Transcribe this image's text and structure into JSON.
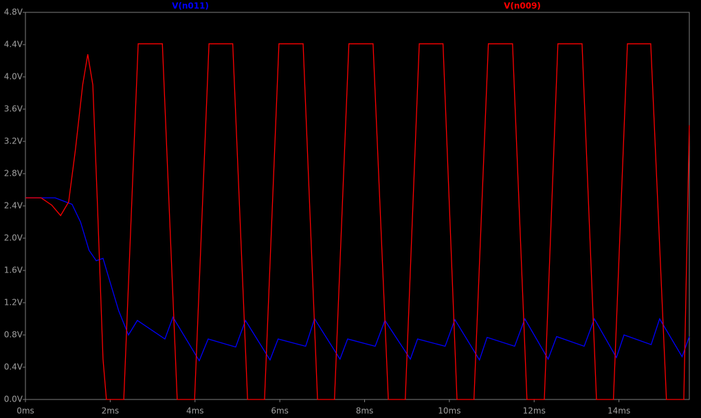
{
  "chart_data": {
    "type": "line",
    "xlim": [
      0,
      15.66
    ],
    "ylim": [
      0,
      4.8
    ],
    "xticks": [
      {
        "value": 0,
        "label": "0ms"
      },
      {
        "value": 2,
        "label": "2ms"
      },
      {
        "value": 4,
        "label": "4ms"
      },
      {
        "value": 6,
        "label": "6ms"
      },
      {
        "value": 8,
        "label": "8ms"
      },
      {
        "value": 10,
        "label": "10ms"
      },
      {
        "value": 12,
        "label": "12ms"
      },
      {
        "value": 14,
        "label": "14ms"
      }
    ],
    "yticks": [
      {
        "value": 0,
        "label": "0.0V"
      },
      {
        "value": 0.4,
        "label": "0.4V"
      },
      {
        "value": 0.8,
        "label": "0.8V"
      },
      {
        "value": 1.2,
        "label": "1.2V"
      },
      {
        "value": 1.6,
        "label": "1.6V"
      },
      {
        "value": 2.0,
        "label": "2.0V"
      },
      {
        "value": 2.4,
        "label": "2.4V"
      },
      {
        "value": 2.8,
        "label": "2.8V"
      },
      {
        "value": 3.2,
        "label": "3.2V"
      },
      {
        "value": 3.6,
        "label": "3.6V"
      },
      {
        "value": 4.0,
        "label": "4.0V"
      },
      {
        "value": 4.4,
        "label": "4.4V"
      },
      {
        "value": 4.8,
        "label": "4.8V"
      }
    ],
    "grid": false,
    "series": [
      {
        "name": "V(n011)",
        "color": "#0000ff",
        "x": [
          0,
          0.7,
          1.1,
          1.3,
          1.5,
          1.67,
          1.83,
          2.0,
          2.2,
          2.43,
          2.64,
          3.29,
          3.48,
          4.1,
          4.31,
          4.96,
          5.19,
          5.77,
          5.96,
          6.61,
          6.82,
          7.42,
          7.6,
          8.25,
          8.48,
          9.08,
          9.25,
          9.9,
          10.13,
          10.71,
          10.89,
          11.54,
          11.78,
          12.33,
          12.53,
          13.18,
          13.42,
          13.94,
          14.12,
          14.76,
          14.96,
          15.49,
          15.66
        ],
        "values": [
          2.5,
          2.5,
          2.42,
          2.2,
          1.85,
          1.72,
          1.75,
          1.45,
          1.1,
          0.8,
          0.98,
          0.75,
          1.02,
          0.48,
          0.75,
          0.65,
          0.98,
          0.49,
          0.75,
          0.66,
          1.0,
          0.5,
          0.75,
          0.66,
          0.98,
          0.5,
          0.75,
          0.66,
          0.99,
          0.49,
          0.77,
          0.66,
          1.0,
          0.5,
          0.78,
          0.66,
          1.0,
          0.52,
          0.8,
          0.68,
          1.0,
          0.53,
          0.78
        ]
      },
      {
        "name": "V(n009)",
        "color": "#ff0000",
        "x": [
          0,
          0.37,
          0.62,
          0.83,
          1.02,
          1.18,
          1.35,
          1.47,
          1.59,
          1.7,
          1.83,
          1.91,
          2.32,
          2.66,
          3.23,
          3.58,
          3.99,
          4.33,
          4.89,
          5.24,
          5.64,
          5.98,
          6.55,
          6.89,
          7.29,
          7.63,
          8.2,
          8.56,
          8.96,
          9.29,
          9.85,
          10.18,
          10.58,
          10.92,
          11.49,
          11.83,
          12.24,
          12.56,
          13.13,
          13.47,
          13.87,
          14.2,
          14.75,
          15.12,
          15.53,
          15.66
        ],
        "values": [
          2.5,
          2.5,
          2.41,
          2.28,
          2.45,
          3.1,
          3.9,
          4.28,
          3.9,
          2.4,
          0.5,
          0,
          0,
          4.41,
          4.41,
          0,
          0,
          4.41,
          4.41,
          0,
          0,
          4.41,
          4.41,
          0,
          0,
          4.41,
          4.41,
          0,
          0,
          4.41,
          4.41,
          0,
          0,
          4.41,
          4.41,
          0,
          0,
          4.41,
          4.41,
          0,
          0,
          4.41,
          4.41,
          0,
          0,
          3.4
        ]
      }
    ]
  }
}
